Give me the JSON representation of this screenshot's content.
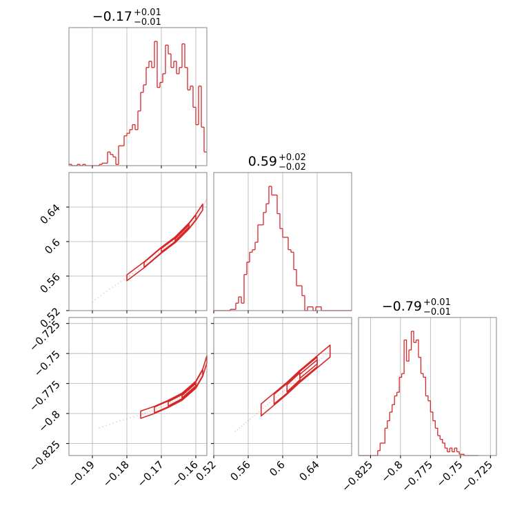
{
  "chart_data": [
    {
      "panel": "hist-x",
      "type": "histogram",
      "title": {
        "value": "−0.17",
        "plus": "+0.01",
        "minus": "−0.01"
      },
      "xlim": [
        -0.1968,
        -0.1568
      ],
      "x_ticks": [
        -0.19,
        -0.18,
        -0.17,
        -0.16
      ],
      "grid": true,
      "bins": [
        [
          -0.1968,
          0.01
        ],
        [
          -0.196,
          0.0
        ],
        [
          -0.1952,
          0.0
        ],
        [
          -0.1944,
          0.01
        ],
        [
          -0.1936,
          0.0
        ],
        [
          -0.1928,
          0.01
        ],
        [
          -0.192,
          0.0
        ],
        [
          -0.1912,
          0.0
        ],
        [
          -0.1904,
          0.0
        ],
        [
          -0.1896,
          0.0
        ],
        [
          -0.1888,
          0.0
        ],
        [
          -0.188,
          0.01
        ],
        [
          -0.1872,
          0.02
        ],
        [
          -0.1864,
          0.02
        ],
        [
          -0.1856,
          0.11
        ],
        [
          -0.1848,
          0.09
        ],
        [
          -0.184,
          0.07
        ],
        [
          -0.1832,
          0.01
        ],
        [
          -0.1824,
          0.16
        ],
        [
          -0.1816,
          0.16
        ],
        [
          -0.1808,
          0.24
        ],
        [
          -0.18,
          0.26
        ],
        [
          -0.1792,
          0.29
        ],
        [
          -0.1784,
          0.33
        ],
        [
          -0.1776,
          0.29
        ],
        [
          -0.1768,
          0.44
        ],
        [
          -0.176,
          0.59
        ],
        [
          -0.1752,
          0.65
        ],
        [
          -0.1744,
          0.79
        ],
        [
          -0.1736,
          0.84
        ],
        [
          -0.1728,
          0.79
        ],
        [
          -0.172,
          1.0
        ],
        [
          -0.1712,
          0.63
        ],
        [
          -0.1704,
          0.67
        ],
        [
          -0.1696,
          0.74
        ],
        [
          -0.1688,
          0.97
        ],
        [
          -0.168,
          0.9
        ],
        [
          -0.1672,
          0.79
        ],
        [
          -0.1664,
          0.84
        ],
        [
          -0.1656,
          0.74
        ],
        [
          -0.1648,
          0.79
        ],
        [
          -0.164,
          0.98
        ],
        [
          -0.1632,
          0.79
        ],
        [
          -0.1624,
          0.61
        ],
        [
          -0.1616,
          0.64
        ],
        [
          -0.1608,
          0.47
        ],
        [
          -0.16,
          0.33
        ],
        [
          -0.1592,
          0.64
        ],
        [
          -0.1584,
          0.31
        ],
        [
          -0.1576,
          0.11
        ]
      ]
    },
    {
      "panel": "hist-y",
      "type": "histogram",
      "title": {
        "value": "0.59",
        "plus": "+0.02",
        "minus": "−0.02"
      },
      "xlim": [
        0.52,
        0.68
      ],
      "x_ticks": [
        0.52,
        0.56,
        0.6,
        0.64
      ],
      "grid": true,
      "bins": [
        [
          0.52,
          0.0
        ],
        [
          0.5232,
          0.0
        ],
        [
          0.5264,
          0.0
        ],
        [
          0.5296,
          0.0
        ],
        [
          0.5328,
          0.0
        ],
        [
          0.536,
          0.0
        ],
        [
          0.5392,
          0.01
        ],
        [
          0.5424,
          0.01
        ],
        [
          0.5456,
          0.06
        ],
        [
          0.5488,
          0.11
        ],
        [
          0.552,
          0.06
        ],
        [
          0.5552,
          0.29
        ],
        [
          0.5584,
          0.39
        ],
        [
          0.5616,
          0.47
        ],
        [
          0.5648,
          0.49
        ],
        [
          0.568,
          0.55
        ],
        [
          0.5712,
          0.69
        ],
        [
          0.5744,
          0.69
        ],
        [
          0.5776,
          0.79
        ],
        [
          0.5808,
          0.86
        ],
        [
          0.584,
          1.0
        ],
        [
          0.5872,
          0.93
        ],
        [
          0.5904,
          0.93
        ],
        [
          0.5936,
          0.78
        ],
        [
          0.5968,
          0.66
        ],
        [
          0.6,
          0.59
        ],
        [
          0.6032,
          0.59
        ],
        [
          0.6064,
          0.49
        ],
        [
          0.6096,
          0.47
        ],
        [
          0.6128,
          0.33
        ],
        [
          0.616,
          0.2
        ],
        [
          0.6192,
          0.2
        ],
        [
          0.6224,
          0.12
        ],
        [
          0.6256,
          0.0
        ],
        [
          0.6288,
          0.03
        ],
        [
          0.632,
          0.03
        ],
        [
          0.6352,
          0.0
        ],
        [
          0.6384,
          0.03
        ],
        [
          0.6416,
          0.03
        ],
        [
          0.6448,
          0.0
        ],
        [
          0.648,
          0.0
        ],
        [
          0.6512,
          0.0
        ],
        [
          0.6544,
          0.0
        ],
        [
          0.6576,
          0.0
        ],
        [
          0.6608,
          0.0
        ],
        [
          0.664,
          0.0
        ],
        [
          0.6672,
          0.0
        ],
        [
          0.6704,
          0.0
        ],
        [
          0.6736,
          0.0
        ],
        [
          0.6768,
          0.0
        ]
      ]
    },
    {
      "panel": "hist-z",
      "type": "histogram",
      "title": {
        "value": "−0.79",
        "plus": "+0.01",
        "minus": "−0.01"
      },
      "xlim": [
        -0.835,
        -0.72
      ],
      "x_ticks": [
        -0.825,
        -0.8,
        -0.775,
        -0.75,
        -0.725
      ],
      "grid": true,
      "bins": [
        [
          -0.835,
          0.0
        ],
        [
          -0.833,
          0.0
        ],
        [
          -0.831,
          0.0
        ],
        [
          -0.829,
          0.0
        ],
        [
          -0.827,
          0.0
        ],
        [
          -0.825,
          0.0
        ],
        [
          -0.823,
          0.0
        ],
        [
          -0.821,
          0.0
        ],
        [
          -0.819,
          0.04
        ],
        [
          -0.817,
          0.1
        ],
        [
          -0.815,
          0.1
        ],
        [
          -0.813,
          0.22
        ],
        [
          -0.811,
          0.28
        ],
        [
          -0.809,
          0.35
        ],
        [
          -0.807,
          0.41
        ],
        [
          -0.805,
          0.48
        ],
        [
          -0.803,
          0.51
        ],
        [
          -0.801,
          0.63
        ],
        [
          -0.799,
          0.66
        ],
        [
          -0.797,
          0.93
        ],
        [
          -0.795,
          0.76
        ],
        [
          -0.793,
          0.85
        ],
        [
          -0.791,
          1.0
        ],
        [
          -0.789,
          0.91
        ],
        [
          -0.787,
          0.93
        ],
        [
          -0.785,
          0.79
        ],
        [
          -0.783,
          0.66
        ],
        [
          -0.781,
          0.63
        ],
        [
          -0.779,
          0.48
        ],
        [
          -0.777,
          0.44
        ],
        [
          -0.775,
          0.35
        ],
        [
          -0.773,
          0.28
        ],
        [
          -0.771,
          0.22
        ],
        [
          -0.769,
          0.16
        ],
        [
          -0.767,
          0.13
        ],
        [
          -0.765,
          0.1
        ],
        [
          -0.763,
          0.06
        ],
        [
          -0.761,
          0.03
        ],
        [
          -0.759,
          0.06
        ],
        [
          -0.757,
          0.03
        ],
        [
          -0.755,
          0.06
        ],
        [
          -0.753,
          0.03
        ],
        [
          -0.751,
          0.01
        ],
        [
          -0.749,
          0.01
        ],
        [
          -0.747,
          0.0
        ],
        [
          -0.745,
          0.0
        ],
        [
          -0.743,
          0.0
        ],
        [
          -0.741,
          0.0
        ],
        [
          -0.739,
          0.0
        ],
        [
          -0.737,
          0.0
        ]
      ]
    },
    {
      "panel": "corr-xy",
      "type": "contour",
      "xlim": [
        -0.1968,
        -0.1568
      ],
      "ylim": [
        0.52,
        0.68
      ],
      "x_ticks": [
        -0.19,
        -0.18,
        -0.17,
        -0.16
      ],
      "y_ticks": [
        0.52,
        0.56,
        0.6,
        0.64
      ],
      "grid": true,
      "trend": [
        [
          -0.19,
          0.53
        ],
        [
          -0.185,
          0.545
        ],
        [
          -0.18,
          0.558
        ],
        [
          -0.175,
          0.573
        ],
        [
          -0.17,
          0.59
        ],
        [
          -0.166,
          0.602
        ],
        [
          -0.162,
          0.618
        ],
        [
          -0.16,
          0.628
        ],
        [
          -0.158,
          0.64
        ],
        [
          -0.1568,
          0.65
        ]
      ],
      "contour_halfwidth": [
        0.0034,
        0.0028,
        0.002,
        0.0012
      ]
    },
    {
      "panel": "corr-xz",
      "type": "contour",
      "xlim": [
        -0.1968,
        -0.1568
      ],
      "ylim": [
        -0.835,
        -0.72
      ],
      "x_ticks": [
        -0.19,
        -0.18,
        -0.17,
        -0.16
      ],
      "y_ticks": [
        -0.825,
        -0.8,
        -0.775,
        -0.75,
        -0.725
      ],
      "grid": true,
      "trend": [
        [
          -0.188,
          -0.812
        ],
        [
          -0.182,
          -0.806
        ],
        [
          -0.176,
          -0.801
        ],
        [
          -0.172,
          -0.797
        ],
        [
          -0.168,
          -0.792
        ],
        [
          -0.164,
          -0.786
        ],
        [
          -0.16,
          -0.776
        ],
        [
          -0.158,
          -0.766
        ],
        [
          -0.1568,
          -0.755
        ]
      ],
      "contour_halfwidth": [
        0.003,
        0.0024,
        0.0017,
        0.001
      ]
    },
    {
      "panel": "corr-yz",
      "type": "contour",
      "xlim": [
        0.52,
        0.68
      ],
      "ylim": [
        -0.835,
        -0.72
      ],
      "x_ticks": [
        0.52,
        0.56,
        0.6,
        0.64
      ],
      "y_ticks": [
        -0.825,
        -0.8,
        -0.775,
        -0.75,
        -0.725
      ],
      "grid": true,
      "trend": [
        [
          0.545,
          -0.815
        ],
        [
          0.56,
          -0.806
        ],
        [
          0.575,
          -0.797
        ],
        [
          0.59,
          -0.788
        ],
        [
          0.605,
          -0.779
        ],
        [
          0.62,
          -0.769
        ],
        [
          0.64,
          -0.757
        ],
        [
          0.655,
          -0.748
        ]
      ],
      "contour_halfwidth": [
        0.005,
        0.004,
        0.0029,
        0.0017
      ]
    }
  ],
  "colors": {
    "series": "#d62728",
    "grid": "#b0b0b0",
    "frame": "#808080",
    "background": "#ffffff"
  }
}
